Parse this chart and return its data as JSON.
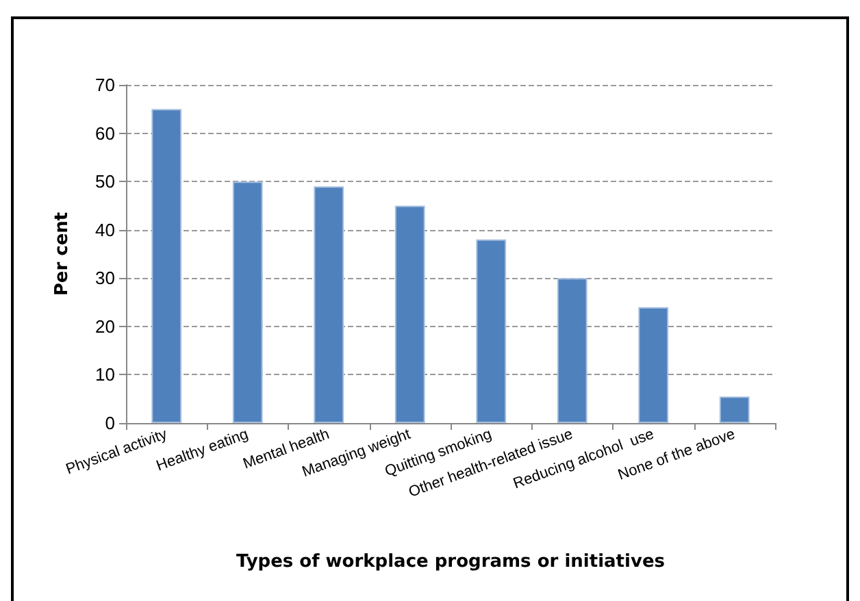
{
  "chart_data": {
    "type": "bar",
    "xlabel": "Types of workplace programs or initiatives",
    "ylabel": "Per cent",
    "categories": [
      "Physical activity",
      "Healthy eating",
      "Mental health",
      "Managing weight",
      "Quitting smoking",
      "Other health-related issue",
      "Reducing alcohol  use",
      "None of the above"
    ],
    "values": [
      65,
      50,
      49,
      45,
      38,
      30,
      24,
      5.5
    ],
    "color": "#4f81bd",
    "ylim": [
      0,
      70
    ],
    "yticks": [
      0,
      10,
      20,
      30,
      40,
      50,
      60,
      70
    ],
    "grid": "y"
  }
}
